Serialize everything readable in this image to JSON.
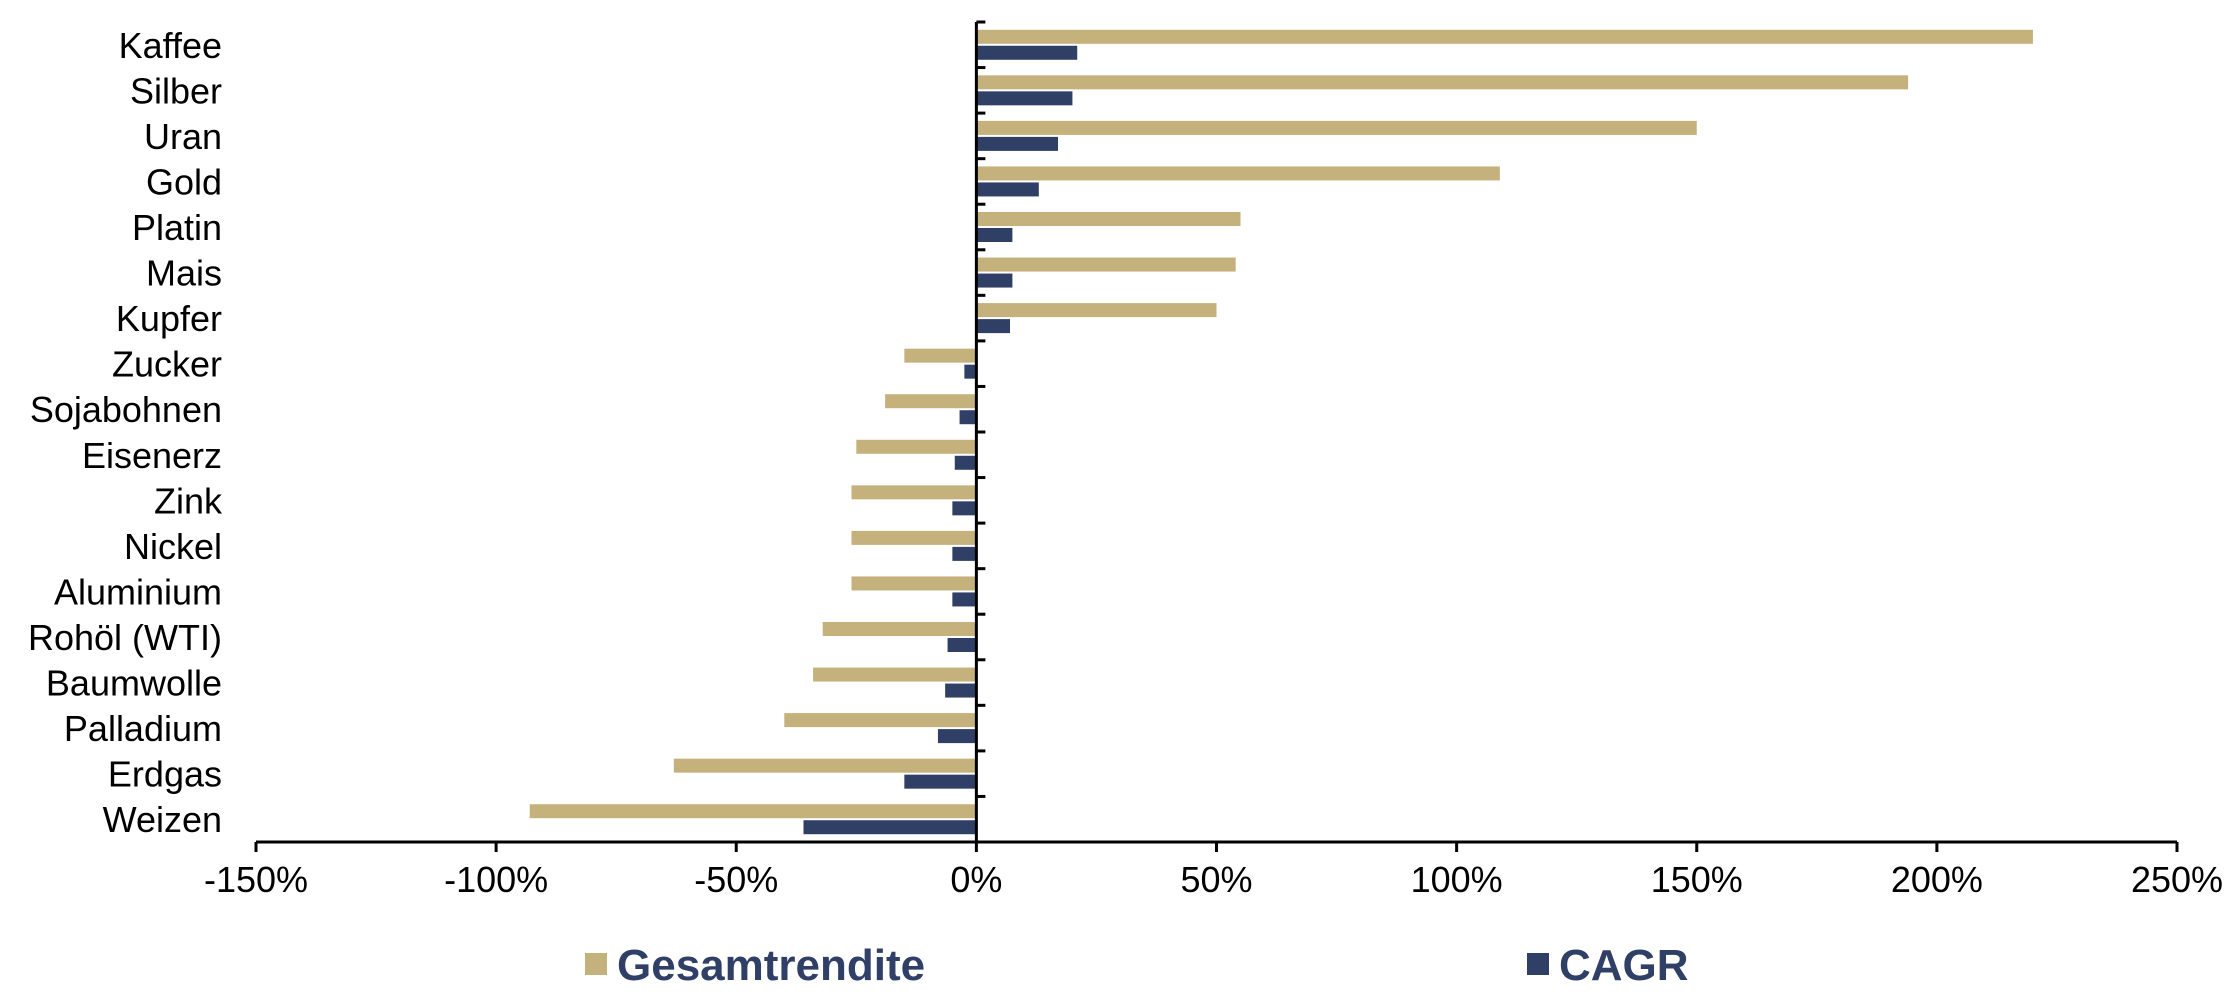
{
  "chart_data": {
    "type": "bar",
    "orientation": "horizontal",
    "categories": [
      "Kaffee",
      "Silber",
      "Uran",
      "Gold",
      "Platin",
      "Mais",
      "Kupfer",
      "Zucker",
      "Sojabohnen",
      "Eisenerz",
      "Zink",
      "Nickel",
      "Aluminium",
      "Rohöl (WTI)",
      "Baumwolle",
      "Palladium",
      "Erdgas",
      "Weizen"
    ],
    "series": [
      {
        "name": "Gesamtrendite",
        "color": "#C4B17C",
        "values": [
          220,
          194,
          150,
          109,
          55,
          54,
          50,
          -15,
          -19,
          -25,
          -26,
          -26,
          -26,
          -32,
          -34,
          -40,
          -63,
          -93
        ]
      },
      {
        "name": "CAGR",
        "color": "#2F3F66",
        "values": [
          21,
          20,
          17,
          13,
          7.5,
          7.5,
          7,
          -2.5,
          -3.5,
          -4.5,
          -5,
          -5,
          -5,
          -6,
          -6.5,
          -8,
          -15,
          -36
        ]
      }
    ],
    "xlim": [
      -150,
      250
    ],
    "xticks": [
      "-150%",
      "-100%",
      "-50%",
      "0%",
      "50%",
      "100%",
      "150%",
      "200%",
      "250%"
    ],
    "xtick_values": [
      -150,
      -100,
      -50,
      0,
      50,
      100,
      150,
      200,
      250
    ],
    "grid": false,
    "legend_position": "bottom"
  }
}
